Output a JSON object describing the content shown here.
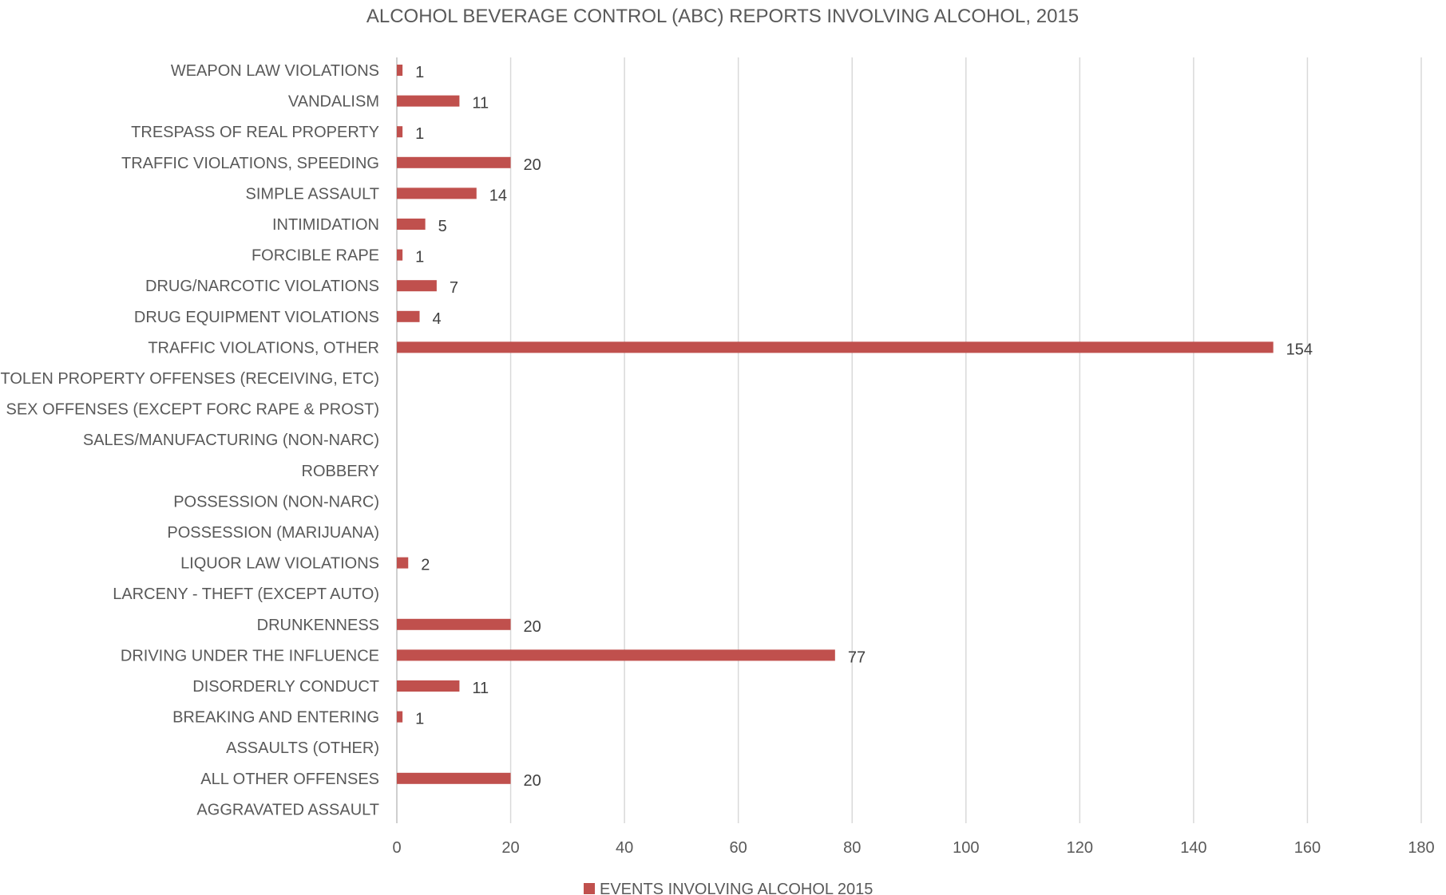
{
  "chart_data": {
    "type": "bar",
    "orientation": "horizontal",
    "title": "ALCOHOL BEVERAGE CONTROL (ABC) REPORTS INVOLVING ALCOHOL, 2015",
    "xlabel": "",
    "ylabel": "",
    "xlim": [
      0,
      180
    ],
    "ticks": [
      0,
      20,
      40,
      60,
      80,
      100,
      120,
      140,
      160,
      180
    ],
    "grid": true,
    "legend_position": "bottom",
    "bar_color": "#c0504d",
    "categories": [
      "WEAPON LAW VIOLATIONS",
      "VANDALISM",
      "TRESPASS OF REAL PROPERTY",
      "TRAFFIC VIOLATIONS, SPEEDING",
      "SIMPLE ASSAULT",
      "INTIMIDATION",
      "FORCIBLE RAPE",
      "DRUG/NARCOTIC VIOLATIONS",
      "DRUG EQUIPMENT VIOLATIONS",
      "TRAFFIC VIOLATIONS, OTHER",
      "STOLEN PROPERTY OFFENSES (RECEIVING, ETC)",
      "SEX OFFENSES (EXCEPT FORC RAPE & PROST)",
      "SALES/MANUFACTURING (NON-NARC)",
      "ROBBERY",
      "POSSESSION (NON-NARC)",
      "POSSESSION (MARIJUANA)",
      "LIQUOR LAW VIOLATIONS",
      "LARCENY - THEFT (EXCEPT AUTO)",
      "DRUNKENNESS",
      "DRIVING UNDER THE INFLUENCE",
      "DISORDERLY CONDUCT",
      "BREAKING AND ENTERING",
      "ASSAULTS (OTHER)",
      "ALL OTHER OFFENSES",
      "AGGRAVATED ASSAULT"
    ],
    "series": [
      {
        "name": "EVENTS INVOLVING ALCOHOL 2015",
        "values": [
          1,
          11,
          1,
          20,
          14,
          5,
          1,
          7,
          4,
          154,
          null,
          null,
          null,
          null,
          null,
          null,
          2,
          null,
          20,
          77,
          11,
          1,
          null,
          20,
          null
        ]
      }
    ]
  }
}
